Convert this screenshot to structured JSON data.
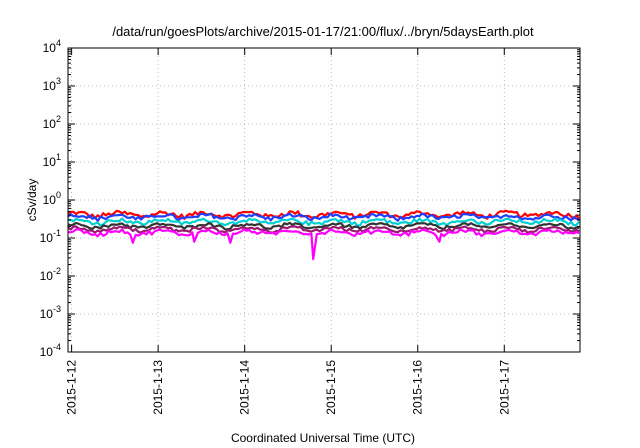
{
  "chart_data": {
    "type": "line",
    "title": "/data/run/goesPlots/archive/2015-01-17/21:00/flux/../bryn/5daysEarth.plot",
    "xlabel": "Coordinated Universal Time (UTC)",
    "ylabel": "cSv/day",
    "yscale": "log",
    "ylim": [
      0.0001,
      10000
    ],
    "xlim": [
      "2015-01-11T23:00",
      "2015-01-17T21:00"
    ],
    "grid": true,
    "y_ticks": [
      {
        "value": 0.0001,
        "base": "10",
        "exp": "-4"
      },
      {
        "value": 0.001,
        "base": "10",
        "exp": "-3"
      },
      {
        "value": 0.01,
        "base": "10",
        "exp": "-2"
      },
      {
        "value": 0.1,
        "base": "10",
        "exp": "-1"
      },
      {
        "value": 1,
        "base": "10",
        "exp": "0"
      },
      {
        "value": 10,
        "base": "10",
        "exp": "1"
      },
      {
        "value": 100,
        "base": "10",
        "exp": "2"
      },
      {
        "value": 1000,
        "base": "10",
        "exp": "3"
      },
      {
        "value": 10000,
        "base": "10",
        "exp": "4"
      }
    ],
    "x_ticks": [
      {
        "value": "2015-01-12T00:00",
        "label": "2015-1-12"
      },
      {
        "value": "2015-01-13T00:00",
        "label": "2015-1-13"
      },
      {
        "value": "2015-01-14T00:00",
        "label": "2015-1-14"
      },
      {
        "value": "2015-01-15T00:00",
        "label": "2015-1-15"
      },
      {
        "value": "2015-01-16T00:00",
        "label": "2015-1-16"
      },
      {
        "value": "2015-01-17T00:00",
        "label": "2015-1-17"
      }
    ],
    "series": [
      {
        "color": "#ff0000",
        "level": 0.42,
        "jitter": 0.13
      },
      {
        "color": "#1e3fff",
        "level": 0.36,
        "jitter": 0.12
      },
      {
        "color": "#00d0d0",
        "level": 0.27,
        "jitter": 0.1
      },
      {
        "color": "#333333",
        "level": 0.21,
        "jitter": 0.08
      },
      {
        "color": "#9a1a70",
        "level": 0.17,
        "jitter": 0.08
      },
      {
        "color": "#ff00ff",
        "level": 0.14,
        "jitter": 0.09,
        "dips": [
          {
            "x": "2015-01-14T19:00",
            "y": 0.028
          },
          {
            "x": "2015-01-12T17:00",
            "y": 0.075
          },
          {
            "x": "2015-01-13T10:00",
            "y": 0.08
          },
          {
            "x": "2015-01-13T20:00",
            "y": 0.075
          },
          {
            "x": "2015-01-16T06:00",
            "y": 0.08
          }
        ]
      }
    ]
  }
}
